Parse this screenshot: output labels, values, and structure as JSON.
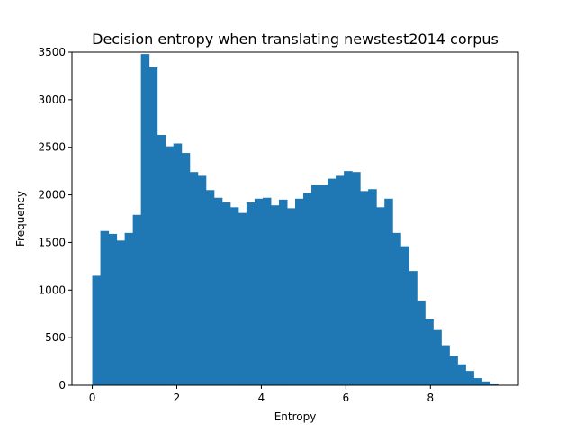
{
  "chart_data": {
    "type": "bar",
    "title": "Decision entropy when translating newstest2014 corpus",
    "xlabel": "Entropy",
    "ylabel": "Frequency",
    "xlim": [
      -0.48,
      10.08
    ],
    "ylim": [
      0,
      3500
    ],
    "x_ticks": [
      0,
      2,
      4,
      6,
      8
    ],
    "y_ticks": [
      0,
      500,
      1000,
      1500,
      2000,
      2500,
      3000,
      3500
    ],
    "bin_start": 0.0,
    "bin_width": 0.192,
    "values": [
      1150,
      1620,
      1590,
      1520,
      1600,
      1790,
      3480,
      3340,
      2630,
      2510,
      2540,
      2440,
      2240,
      2200,
      2050,
      1970,
      1920,
      1870,
      1810,
      1920,
      1960,
      1970,
      1890,
      1950,
      1860,
      1960,
      2020,
      2100,
      2100,
      2170,
      2200,
      2250,
      2240,
      2040,
      2060,
      1870,
      1960,
      1600,
      1460,
      1200,
      890,
      700,
      580,
      420,
      310,
      220,
      150,
      75,
      40,
      10
    ],
    "grid": false,
    "legend": "none",
    "color": "#1f77b4"
  }
}
